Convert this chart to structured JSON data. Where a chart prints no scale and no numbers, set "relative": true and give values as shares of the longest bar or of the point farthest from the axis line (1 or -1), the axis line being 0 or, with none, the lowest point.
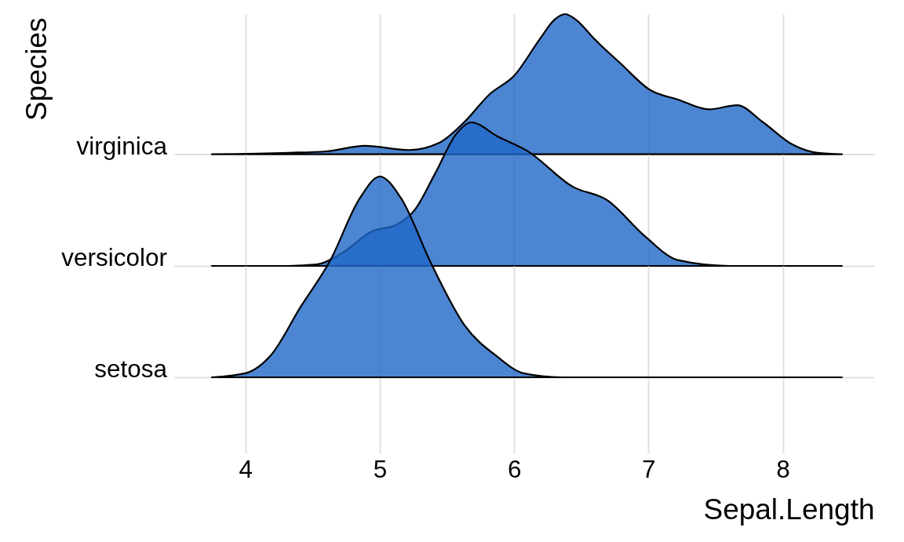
{
  "chart_data": [
    {
      "type": "area",
      "relative": true,
      "ylabel": "Species",
      "xlim": [
        3.47,
        8.68
      ],
      "xticks": [
        4,
        5,
        6,
        7,
        8
      ],
      "grid": "x",
      "tick_labels": false,
      "series": [
        {
          "name": "virginica",
          "color": "#1f66c7",
          "x": [
            3.75,
            4.32,
            4.6,
            4.89,
            5.22,
            5.44,
            5.63,
            5.82,
            6.0,
            6.19,
            6.3,
            6.38,
            6.46,
            6.6,
            6.79,
            7.01,
            7.22,
            7.45,
            7.66,
            7.85,
            8.07,
            8.26,
            8.44
          ],
          "values": [
            0,
            0.01,
            0.02,
            0.06,
            0.03,
            0.08,
            0.23,
            0.43,
            0.56,
            0.82,
            0.96,
            1,
            0.96,
            0.82,
            0.65,
            0.46,
            0.39,
            0.32,
            0.35,
            0.23,
            0.07,
            0.01,
            0
          ]
        }
      ]
    },
    {
      "type": "area",
      "relative": true,
      "xlim": [
        3.47,
        8.68
      ],
      "xticks": [
        4,
        5,
        6,
        7,
        8
      ],
      "grid": "x",
      "tick_labels": false,
      "series": [
        {
          "name": "versicolor",
          "color": "#1f66c7",
          "x": [
            3.75,
            4.32,
            4.53,
            4.72,
            4.94,
            5.13,
            5.26,
            5.41,
            5.57,
            5.68,
            5.88,
            6.1,
            6.44,
            6.69,
            6.97,
            7.22,
            7.6,
            8.44
          ],
          "values": [
            0,
            0,
            0.01,
            0.09,
            0.24,
            0.29,
            0.39,
            0.64,
            0.92,
            1,
            0.9,
            0.8,
            0.55,
            0.46,
            0.21,
            0.04,
            0,
            0
          ]
        }
      ]
    },
    {
      "type": "area",
      "relative": true,
      "xlabel": "Sepal.Length",
      "xlim": [
        3.47,
        8.68
      ],
      "xticks": [
        4,
        5,
        6,
        7,
        8
      ],
      "grid": "x",
      "tick_labels": "x",
      "series": [
        {
          "name": "setosa",
          "color": "#1f66c7",
          "x": [
            3.75,
            4.0,
            4.19,
            4.41,
            4.63,
            4.85,
            5.0,
            5.16,
            5.38,
            5.63,
            5.88,
            6.07,
            6.35,
            8.44
          ],
          "values": [
            0,
            0.02,
            0.11,
            0.35,
            0.58,
            0.89,
            1,
            0.89,
            0.57,
            0.26,
            0.1,
            0.02,
            0,
            0
          ]
        }
      ]
    }
  ]
}
